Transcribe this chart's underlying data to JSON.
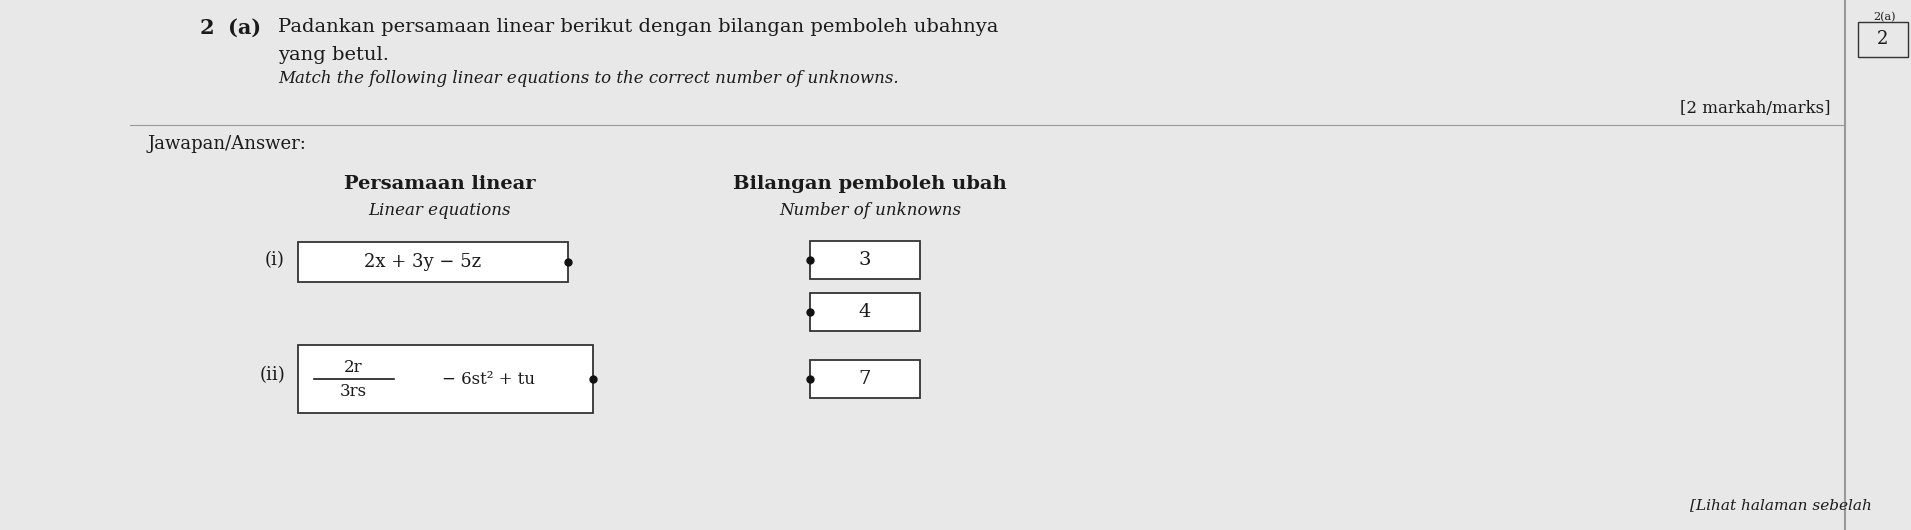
{
  "bg_color": "#e8e8e8",
  "title_number": "2",
  "title_letter": "(a)",
  "title_malay": "Padankan persamaan linear berikut dengan bilangan pemboleh ubahnya",
  "title_malay2": "yang betul.",
  "title_english": "Match the following linear equations to the correct number of unknowns.",
  "marks_text": "[2 markah/​marks]",
  "box_label": "2(a)",
  "box_number": "2",
  "jawapan_text": "Jawapan/Answer:",
  "col1_header1": "Persamaan linear",
  "col1_header2": "Linear equations",
  "col2_header1": "Bilangan pemboleh ubah",
  "col2_header2": "Number of unknowns",
  "eq1_label": "(i)",
  "eq1_text": "2x + 3y − 5z",
  "eq2_label": "(ii)",
  "eq2_numer": "2r",
  "eq2_denom": "3rs",
  "eq2_rest": "− 6st² + tu",
  "answers": [
    "3",
    "4",
    "7"
  ],
  "footer_text": "[Lihat halaman sebelah",
  "box_color": "#ffffff",
  "border_color": "#333333",
  "text_color": "#1a1a1a",
  "dot_color": "#111111",
  "line_color": "#999999"
}
